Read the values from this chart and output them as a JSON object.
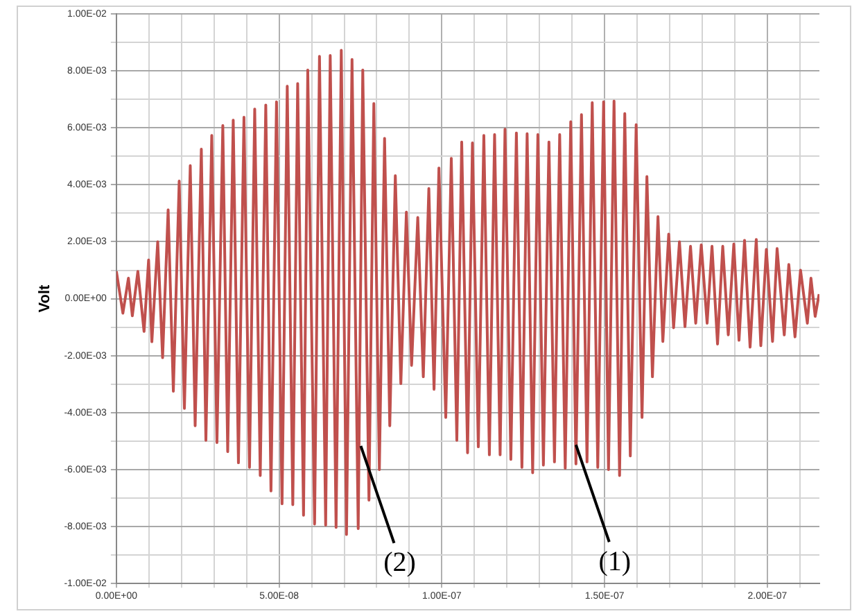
{
  "chart_data": {
    "type": "line",
    "ylabel": "Volt",
    "color": "#c0504d",
    "marker": "none",
    "grid": true,
    "legend": false,
    "x": [
      0,
      2e-09,
      3.7e-09,
      4.9e-09,
      6.6e-09,
      8.5e-09,
      9.9e-09,
      1.09e-08,
      1.27e-08,
      1.42e-08,
      1.59e-08,
      1.75e-08,
      1.93e-08,
      2.09e-08,
      2.27e-08,
      2.42e-08,
      2.61e-08,
      2.75e-08,
      2.93e-08,
      3.09e-08,
      3.27e-08,
      3.42e-08,
      3.59e-08,
      3.75e-08,
      3.92e-08,
      4.09e-08,
      4.25e-08,
      4.42e-08,
      4.59e-08,
      4.75e-08,
      4.92e-08,
      5.09e-08,
      5.25e-08,
      5.42e-08,
      5.57e-08,
      5.75e-08,
      5.88e-08,
      6.09e-08,
      6.24e-08,
      6.43e-08,
      6.57e-08,
      6.75e-08,
      6.91e-08,
      7.07e-08,
      7.24e-08,
      7.43e-08,
      7.57e-08,
      7.76e-08,
      7.91e-08,
      8.08e-08,
      8.24e-08,
      8.4e-08,
      8.57e-08,
      8.74e-08,
      8.91e-08,
      9.07e-08,
      9.26e-08,
      9.43e-08,
      9.6e-08,
      9.76e-08,
      9.91e-08,
      1.012e-07,
      1.029e-07,
      1.046e-07,
      1.061e-07,
      1.079e-07,
      1.094e-07,
      1.112e-07,
      1.129e-07,
      1.146e-07,
      1.162e-07,
      1.179e-07,
      1.194e-07,
      1.212e-07,
      1.229e-07,
      1.246e-07,
      1.262e-07,
      1.279e-07,
      1.295e-07,
      1.312e-07,
      1.329e-07,
      1.346e-07,
      1.362e-07,
      1.379e-07,
      1.396e-07,
      1.412e-07,
      1.429e-07,
      1.446e-07,
      1.462e-07,
      1.479e-07,
      1.497e-07,
      1.512e-07,
      1.529e-07,
      1.546e-07,
      1.562e-07,
      1.579e-07,
      1.597e-07,
      1.615e-07,
      1.63e-07,
      1.647e-07,
      1.664e-07,
      1.679e-07,
      1.697e-07,
      1.712e-07,
      1.73e-07,
      1.747e-07,
      1.764e-07,
      1.78e-07,
      1.797e-07,
      1.815e-07,
      1.83e-07,
      1.847e-07,
      1.863e-07,
      1.88e-07,
      1.897e-07,
      1.913e-07,
      1.93e-07,
      1.947e-07,
      1.966e-07,
      1.98e-07,
      1.997e-07,
      2.016e-07,
      2.03e-07,
      2.052e-07,
      2.066e-07,
      2.085e-07,
      2.102e-07,
      2.123e-07,
      2.134e-07,
      2.147e-07,
      2.159e-07
    ],
    "values": [
      0.00096,
      -0.00051,
      0.00072,
      -0.0006,
      0.00096,
      -0.00115,
      0.00136,
      -0.00151,
      0.002,
      -0.00207,
      0.00312,
      -0.00325,
      0.00413,
      -0.00385,
      0.00467,
      -0.00446,
      0.00525,
      -0.00497,
      0.00573,
      -0.00505,
      0.00608,
      -0.00537,
      0.00627,
      -0.00576,
      0.00637,
      -0.00592,
      0.00666,
      -0.00621,
      0.0068,
      -0.00675,
      0.00691,
      -0.0072,
      0.00746,
      -0.00723,
      0.00755,
      -0.0076,
      0.00803,
      -0.00791,
      0.00851,
      -0.00795,
      0.00854,
      -0.00803,
      0.00872,
      -0.00828,
      0.0084,
      -0.00807,
      0.00803,
      -0.00707,
      0.00685,
      -0.006,
      0.00563,
      -0.00446,
      0.00432,
      -0.00298,
      0.00304,
      -0.00234,
      0.00285,
      -0.00274,
      0.00387,
      -0.00318,
      0.00459,
      -0.00417,
      0.00493,
      -0.00497,
      0.0055,
      -0.00541,
      0.00547,
      -0.0052,
      0.00573,
      -0.00548,
      0.00576,
      -0.00548,
      0.00595,
      -0.00564,
      0.00582,
      -0.00592,
      0.00579,
      -0.00611,
      0.00576,
      -0.00584,
      0.0055,
      -0.00573,
      0.00576,
      -0.00595,
      0.00621,
      -0.0058,
      0.00646,
      -0.00573,
      0.00688,
      -0.00592,
      0.00691,
      -0.006,
      0.00694,
      -0.00621,
      0.0065,
      -0.00552,
      0.00611,
      -0.00417,
      0.00429,
      -0.00274,
      0.00288,
      -0.0015,
      0.00227,
      -0.00102,
      0.002,
      -0.00098,
      0.00184,
      -0.00086,
      0.00189,
      -0.00086,
      0.00184,
      -0.00159,
      0.00184,
      -0.00127,
      0.00192,
      -0.00146,
      0.00205,
      -0.0017,
      0.00208,
      -0.00165,
      0.00173,
      -0.0015,
      0.00176,
      -0.00127,
      0.0012,
      -0.00134,
      0.001,
      -0.00086,
      0.00072,
      -0.00062,
      0.00016
    ],
    "xlim": [
      0,
      2.16e-07
    ],
    "xticks": [
      {
        "value": 0,
        "label": "0.00E+00"
      },
      {
        "value": 1e-08,
        "label": null
      },
      {
        "value": 2e-08,
        "label": null
      },
      {
        "value": 3e-08,
        "label": null
      },
      {
        "value": 4e-08,
        "label": null
      },
      {
        "value": 5e-08,
        "label": "5.00E-08"
      },
      {
        "value": 6e-08,
        "label": null
      },
      {
        "value": 7e-08,
        "label": null
      },
      {
        "value": 8e-08,
        "label": null
      },
      {
        "value": 9e-08,
        "label": null
      },
      {
        "value": 1e-07,
        "label": "1.00E-07"
      },
      {
        "value": 1.1e-07,
        "label": null
      },
      {
        "value": 1.2e-07,
        "label": null
      },
      {
        "value": 1.3e-07,
        "label": null
      },
      {
        "value": 1.4e-07,
        "label": null
      },
      {
        "value": 1.5e-07,
        "label": "1.50E-07"
      },
      {
        "value": 1.6e-07,
        "label": null
      },
      {
        "value": 1.7e-07,
        "label": null
      },
      {
        "value": 1.8e-07,
        "label": null
      },
      {
        "value": 1.9e-07,
        "label": null
      },
      {
        "value": 2e-07,
        "label": "2.00E-07"
      },
      {
        "value": 2.1e-07,
        "label": null
      }
    ],
    "ylim": [
      -0.01,
      0.01
    ],
    "yticks": [
      {
        "value": -0.01,
        "label": "-1.00E-02"
      },
      {
        "value": -0.009,
        "label": null
      },
      {
        "value": -0.008,
        "label": "-8.00E-03"
      },
      {
        "value": -0.007,
        "label": null
      },
      {
        "value": -0.006,
        "label": "-6.00E-03"
      },
      {
        "value": -0.005,
        "label": null
      },
      {
        "value": -0.004,
        "label": "-4.00E-03"
      },
      {
        "value": -0.003,
        "label": null
      },
      {
        "value": -0.002,
        "label": "-2.00E-03"
      },
      {
        "value": -0.001,
        "label": null
      },
      {
        "value": 0,
        "label": "0.00E+00"
      },
      {
        "value": 0.001,
        "label": null
      },
      {
        "value": 0.002,
        "label": "2.00E-03"
      },
      {
        "value": 0.003,
        "label": null
      },
      {
        "value": 0.004,
        "label": "4.00E-03"
      },
      {
        "value": 0.005,
        "label": null
      },
      {
        "value": 0.006,
        "label": "6.00E-03"
      },
      {
        "value": 0.007,
        "label": null
      },
      {
        "value": 0.008,
        "label": "8.00E-03"
      },
      {
        "value": 0.009,
        "label": null
      },
      {
        "value": 0.01,
        "label": "1.00E-02"
      }
    ],
    "annotations": [
      {
        "text": "(2)",
        "x": 7.51e-08,
        "y": -0.00517
      },
      {
        "text": "(1)",
        "x": 1.412e-07,
        "y": -0.00513
      }
    ]
  }
}
